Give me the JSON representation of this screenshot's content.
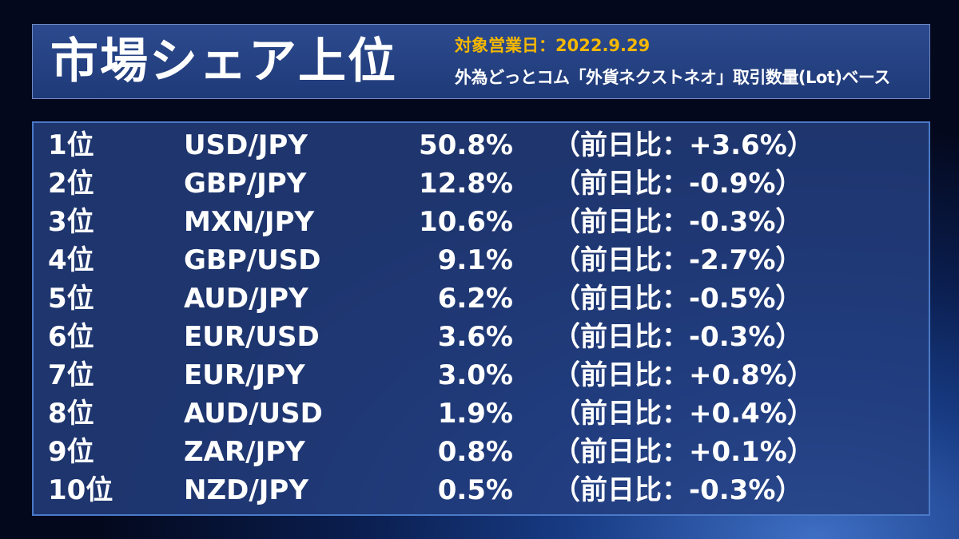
{
  "header": {
    "title": "市場シェア上位",
    "date_label": "対象営業日：2022.9.29",
    "source_label": "外為どっとコム「外貨ネクストネオ」取引数量(Lot)ベース"
  },
  "ranking": [
    {
      "rank": "1位",
      "pair": "USD/JPY",
      "share": "50.8%",
      "change": "（前日比：+3.6%）"
    },
    {
      "rank": "2位",
      "pair": "GBP/JPY",
      "share": "12.8%",
      "change": "（前日比：-0.9%）"
    },
    {
      "rank": "3位",
      "pair": "MXN/JPY",
      "share": "10.6%",
      "change": "（前日比：-0.3%）"
    },
    {
      "rank": "4位",
      "pair": "GBP/USD",
      "share": "9.1%",
      "change": "（前日比：-2.7%）"
    },
    {
      "rank": "5位",
      "pair": "AUD/JPY",
      "share": "6.2%",
      "change": "（前日比：-0.5%）"
    },
    {
      "rank": "6位",
      "pair": "EUR/USD",
      "share": "3.6%",
      "change": "（前日比：-0.3%）"
    },
    {
      "rank": "7位",
      "pair": "EUR/JPY",
      "share": "3.0%",
      "change": "（前日比：+0.8%）"
    },
    {
      "rank": "8位",
      "pair": "AUD/USD",
      "share": "1.9%",
      "change": "（前日比：+0.4%）"
    },
    {
      "rank": "9位",
      "pair": "ZAR/JPY",
      "share": "0.8%",
      "change": "（前日比：+0.1%）"
    },
    {
      "rank": "10位",
      "pair": "NZD/JPY",
      "share": "0.5%",
      "change": "（前日比：-0.3%）"
    }
  ],
  "colors": {
    "date_accent": "#f5b800",
    "panel_border": "#4a7ac8"
  }
}
